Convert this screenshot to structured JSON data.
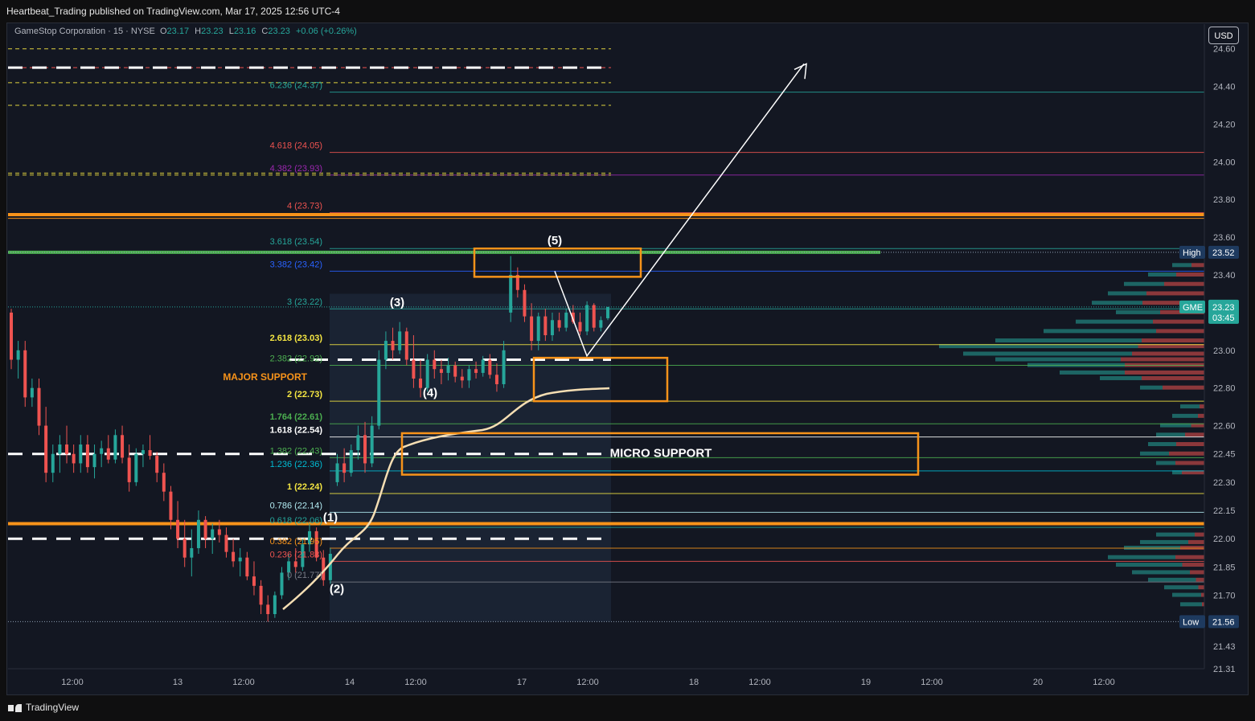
{
  "header": {
    "publisher_line": "Heartbeat_Trading published on TradingView.com, Mar 17, 2025 12:56 UTC-4",
    "brand": "TradingView",
    "currency_button": "USD"
  },
  "legend": {
    "symbol": "GameStop Corporation · 15 · NYSE",
    "open_label": "O",
    "open": "23.17",
    "high_label": "H",
    "high": "23.23",
    "low_label": "L",
    "low": "23.16",
    "close_label": "C",
    "close": "23.23",
    "change": "+0.06 (+0.26%)"
  },
  "colors": {
    "up": "#26a69a",
    "down": "#ef5350",
    "orange": "#f7931a",
    "green_line": "#4caf50",
    "white": "#ffffff",
    "yellow": "#f5e642"
  },
  "chart_data": {
    "type": "candlestick",
    "ylim": [
      21.31,
      24.62
    ],
    "y_ticks": [
      "24.60",
      "24.40",
      "24.20",
      "24.00",
      "23.80",
      "23.60",
      "23.40",
      "23.20",
      "23.00",
      "22.80",
      "22.60",
      "22.45",
      "22.30",
      "22.15",
      "22.00",
      "21.85",
      "21.70",
      "21.56",
      "21.43",
      "21.31"
    ],
    "x_ticks": [
      "12:00",
      "13",
      "12:00",
      "14",
      "12:00",
      "17",
      "12:00",
      "18",
      "12:00",
      "19",
      "12:00",
      "20",
      "12:00"
    ],
    "price_badges": [
      {
        "label": "High",
        "value": "23.52",
        "price": 23.52
      },
      {
        "label": "GME",
        "value": "23.23",
        "sub": "03:45",
        "price": 23.23
      },
      {
        "label": "Low",
        "value": "21.56",
        "price": 21.56
      }
    ],
    "fib_levels": [
      {
        "label": "6.236 (24.37)",
        "price": 24.37,
        "color": "#26a69a"
      },
      {
        "label": "4.618 (24.05)",
        "price": 24.05,
        "color": "#ef5350"
      },
      {
        "label": "4.382 (23.93)",
        "price": 23.93,
        "color": "#9c27b0"
      },
      {
        "label": "4 (23.73)",
        "price": 23.73,
        "color": "#ef5350"
      },
      {
        "label": "3.618 (23.54)",
        "price": 23.54,
        "color": "#26a69a"
      },
      {
        "label": "3.382 (23.42)",
        "price": 23.42,
        "color": "#2962ff"
      },
      {
        "label": "3 (23.22)",
        "price": 23.22,
        "color": "#26a69a"
      },
      {
        "label": "2.618 (23.03)",
        "price": 23.03,
        "color": "#f5e642"
      },
      {
        "label": "2.382 (22.92)",
        "price": 22.92,
        "color": "#4caf50"
      },
      {
        "label": "2 (22.73)",
        "price": 22.73,
        "color": "#f5e642"
      },
      {
        "label": "1.764 (22.61)",
        "price": 22.61,
        "color": "#4caf50"
      },
      {
        "label": "1.618 (22.54)",
        "price": 22.54,
        "color": "#ffffff"
      },
      {
        "label": "1.382 (22.43)",
        "price": 22.43,
        "color": "#4caf50"
      },
      {
        "label": "1.236 (22.36)",
        "price": 22.36,
        "color": "#00bcd4"
      },
      {
        "label": "1 (22.24)",
        "price": 22.24,
        "color": "#f5e642"
      },
      {
        "label": "0.786 (22.14)",
        "price": 22.14,
        "color": "#b2ebf2"
      },
      {
        "label": "0.618 (22.06)",
        "price": 22.06,
        "color": "#26a69a"
      },
      {
        "label": "0.382 (21.95)",
        "price": 21.95,
        "color": "#f7931a"
      },
      {
        "label": "0.236 (21.88)",
        "price": 21.88,
        "color": "#ef5350"
      },
      {
        "label": "0 (21.77)",
        "price": 21.77,
        "color": "#787b86"
      }
    ],
    "horizontal_lines": [
      {
        "name": "orange-resistance-line",
        "price": 23.72,
        "color": "#f7931a"
      },
      {
        "name": "green-resistance-line",
        "price": 23.52,
        "color": "#4caf50"
      },
      {
        "name": "orange-support-line",
        "price": 22.08,
        "color": "#f7931a"
      }
    ],
    "wave_labels": [
      "(1)",
      "(2)",
      "(3)",
      "(4)",
      "(5)"
    ],
    "zone_labels": [
      "MAJOR SUPPORT",
      "MICRO SUPPORT"
    ],
    "candles": [
      {
        "o": 23.2,
        "h": 23.22,
        "l": 22.9,
        "c": 22.95
      },
      {
        "o": 22.95,
        "h": 23.05,
        "l": 22.85,
        "c": 23.0
      },
      {
        "o": 23.0,
        "h": 23.05,
        "l": 22.7,
        "c": 22.75
      },
      {
        "o": 22.75,
        "h": 22.85,
        "l": 22.7,
        "c": 22.8
      },
      {
        "o": 22.8,
        "h": 22.85,
        "l": 22.55,
        "c": 22.6
      },
      {
        "o": 22.6,
        "h": 22.7,
        "l": 22.3,
        "c": 22.35
      },
      {
        "o": 22.35,
        "h": 22.5,
        "l": 22.3,
        "c": 22.45
      },
      {
        "o": 22.45,
        "h": 22.55,
        "l": 22.35,
        "c": 22.5
      },
      {
        "o": 22.5,
        "h": 22.6,
        "l": 22.4,
        "c": 22.45
      },
      {
        "o": 22.45,
        "h": 22.5,
        "l": 22.35,
        "c": 22.4
      },
      {
        "o": 22.4,
        "h": 22.55,
        "l": 22.35,
        "c": 22.5
      },
      {
        "o": 22.5,
        "h": 22.55,
        "l": 22.35,
        "c": 22.38
      },
      {
        "o": 22.38,
        "h": 22.5,
        "l": 22.32,
        "c": 22.45
      },
      {
        "o": 22.45,
        "h": 22.52,
        "l": 22.38,
        "c": 22.48
      },
      {
        "o": 22.48,
        "h": 22.55,
        "l": 22.4,
        "c": 22.42
      },
      {
        "o": 22.42,
        "h": 22.58,
        "l": 22.4,
        "c": 22.55
      },
      {
        "o": 22.55,
        "h": 22.6,
        "l": 22.4,
        "c": 22.43
      },
      {
        "o": 22.43,
        "h": 22.5,
        "l": 22.25,
        "c": 22.3
      },
      {
        "o": 22.3,
        "h": 22.48,
        "l": 22.28,
        "c": 22.45
      },
      {
        "o": 22.45,
        "h": 22.5,
        "l": 22.38,
        "c": 22.47
      },
      {
        "o": 22.47,
        "h": 22.55,
        "l": 22.42,
        "c": 22.44
      },
      {
        "o": 22.44,
        "h": 22.46,
        "l": 22.3,
        "c": 22.35
      },
      {
        "o": 22.35,
        "h": 22.4,
        "l": 22.2,
        "c": 22.25
      },
      {
        "o": 22.25,
        "h": 22.28,
        "l": 22.05,
        "c": 22.1
      },
      {
        "o": 22.1,
        "h": 22.2,
        "l": 21.95,
        "c": 22.0
      },
      {
        "o": 22.0,
        "h": 22.1,
        "l": 21.85,
        "c": 21.9
      },
      {
        "o": 21.9,
        "h": 22.05,
        "l": 21.8,
        "c": 21.95
      },
      {
        "o": 21.95,
        "h": 22.15,
        "l": 21.92,
        "c": 22.1
      },
      {
        "o": 22.1,
        "h": 22.12,
        "l": 21.95,
        "c": 22.0
      },
      {
        "o": 22.0,
        "h": 22.08,
        "l": 21.92,
        "c": 22.05
      },
      {
        "o": 22.05,
        "h": 22.1,
        "l": 21.98,
        "c": 22.02
      },
      {
        "o": 22.02,
        "h": 22.06,
        "l": 21.9,
        "c": 21.93
      },
      {
        "o": 21.93,
        "h": 22.0,
        "l": 21.85,
        "c": 21.88
      },
      {
        "o": 21.88,
        "h": 21.95,
        "l": 21.8,
        "c": 21.9
      },
      {
        "o": 21.9,
        "h": 21.93,
        "l": 21.78,
        "c": 21.8
      },
      {
        "o": 21.8,
        "h": 21.88,
        "l": 21.7,
        "c": 21.75
      },
      {
        "o": 21.75,
        "h": 21.78,
        "l": 21.6,
        "c": 21.65
      },
      {
        "o": 21.65,
        "h": 21.7,
        "l": 21.56,
        "c": 21.6
      },
      {
        "o": 21.6,
        "h": 21.72,
        "l": 21.58,
        "c": 21.7
      },
      {
        "o": 21.7,
        "h": 21.85,
        "l": 21.68,
        "c": 21.82
      },
      {
        "o": 21.82,
        "h": 21.92,
        "l": 21.78,
        "c": 21.88
      },
      {
        "o": 21.88,
        "h": 21.95,
        "l": 21.82,
        "c": 21.85
      },
      {
        "o": 21.85,
        "h": 22.0,
        "l": 21.83,
        "c": 21.97
      },
      {
        "o": 21.97,
        "h": 22.08,
        "l": 21.93,
        "c": 22.04
      },
      {
        "o": 22.04,
        "h": 22.06,
        "l": 21.88,
        "c": 21.9
      },
      {
        "o": 21.9,
        "h": 21.94,
        "l": 21.75,
        "c": 21.78
      },
      {
        "o": 21.78,
        "h": 21.95,
        "l": 21.76,
        "c": 21.92
      },
      {
        "o": 22.3,
        "h": 22.45,
        "l": 22.28,
        "c": 22.4
      },
      {
        "o": 22.4,
        "h": 22.48,
        "l": 22.3,
        "c": 22.35
      },
      {
        "o": 22.35,
        "h": 22.5,
        "l": 22.33,
        "c": 22.47
      },
      {
        "o": 22.47,
        "h": 22.6,
        "l": 22.42,
        "c": 22.55
      },
      {
        "o": 22.55,
        "h": 22.62,
        "l": 22.35,
        "c": 22.4
      },
      {
        "o": 22.4,
        "h": 22.65,
        "l": 22.38,
        "c": 22.6
      },
      {
        "o": 22.6,
        "h": 23.0,
        "l": 22.58,
        "c": 22.95
      },
      {
        "o": 22.95,
        "h": 23.1,
        "l": 22.9,
        "c": 23.05
      },
      {
        "o": 23.05,
        "h": 23.12,
        "l": 22.95,
        "c": 23.0
      },
      {
        "o": 23.0,
        "h": 23.15,
        "l": 22.98,
        "c": 23.1
      },
      {
        "o": 23.1,
        "h": 23.12,
        "l": 22.92,
        "c": 22.95
      },
      {
        "o": 22.95,
        "h": 23.08,
        "l": 22.8,
        "c": 22.85
      },
      {
        "o": 22.85,
        "h": 22.95,
        "l": 22.75,
        "c": 22.8
      },
      {
        "o": 22.8,
        "h": 22.98,
        "l": 22.78,
        "c": 22.95
      },
      {
        "o": 22.95,
        "h": 23.0,
        "l": 22.85,
        "c": 22.9
      },
      {
        "o": 22.9,
        "h": 22.95,
        "l": 22.82,
        "c": 22.88
      },
      {
        "o": 22.88,
        "h": 22.96,
        "l": 22.84,
        "c": 22.92
      },
      {
        "o": 22.92,
        "h": 22.94,
        "l": 22.83,
        "c": 22.86
      },
      {
        "o": 22.86,
        "h": 22.9,
        "l": 22.8,
        "c": 22.84
      },
      {
        "o": 22.84,
        "h": 22.92,
        "l": 22.8,
        "c": 22.9
      },
      {
        "o": 22.9,
        "h": 22.94,
        "l": 22.85,
        "c": 22.88
      },
      {
        "o": 22.88,
        "h": 22.97,
        "l": 22.86,
        "c": 22.95
      },
      {
        "o": 22.95,
        "h": 22.98,
        "l": 22.85,
        "c": 22.87
      },
      {
        "o": 22.87,
        "h": 22.93,
        "l": 22.78,
        "c": 22.82
      },
      {
        "o": 22.82,
        "h": 23.05,
        "l": 22.8,
        "c": 23.0
      },
      {
        "o": 23.2,
        "h": 23.5,
        "l": 23.15,
        "c": 23.4
      },
      {
        "o": 23.4,
        "h": 23.44,
        "l": 23.28,
        "c": 23.32
      },
      {
        "o": 23.32,
        "h": 23.35,
        "l": 23.15,
        "c": 23.18
      },
      {
        "o": 23.18,
        "h": 23.25,
        "l": 23.0,
        "c": 23.05
      },
      {
        "o": 23.05,
        "h": 23.2,
        "l": 23.0,
        "c": 23.18
      },
      {
        "o": 23.18,
        "h": 23.22,
        "l": 23.05,
        "c": 23.08
      },
      {
        "o": 23.08,
        "h": 23.2,
        "l": 23.05,
        "c": 23.16
      },
      {
        "o": 23.16,
        "h": 23.2,
        "l": 23.1,
        "c": 23.12
      },
      {
        "o": 23.12,
        "h": 23.22,
        "l": 23.1,
        "c": 23.2
      },
      {
        "o": 23.2,
        "h": 23.24,
        "l": 23.14,
        "c": 23.15
      },
      {
        "o": 23.15,
        "h": 23.2,
        "l": 23.08,
        "c": 23.1
      },
      {
        "o": 23.1,
        "h": 23.26,
        "l": 23.08,
        "c": 23.24
      },
      {
        "o": 23.24,
        "h": 23.25,
        "l": 23.1,
        "c": 23.12
      },
      {
        "o": 23.12,
        "h": 23.18,
        "l": 23.1,
        "c": 23.16
      },
      {
        "o": 23.17,
        "h": 23.23,
        "l": 23.16,
        "c": 23.23
      }
    ]
  }
}
